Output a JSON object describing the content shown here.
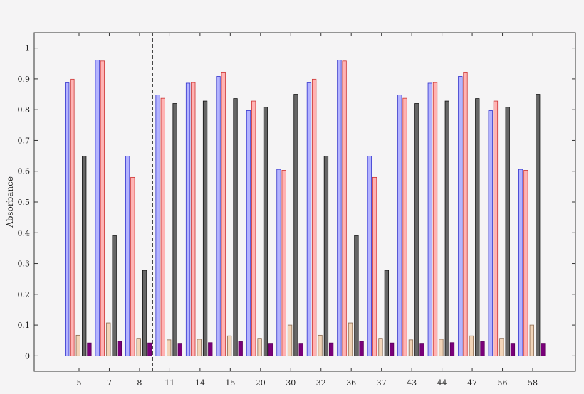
{
  "chart_data": {
    "type": "bar",
    "title": "",
    "xlabel": "",
    "ylabel": "Absorbance",
    "ylim": [
      -0.05,
      1.05
    ],
    "yticks": [
      0,
      0.1,
      0.2,
      0.3,
      0.4,
      0.5,
      0.6,
      0.7,
      0.8,
      0.9,
      1
    ],
    "ytick_labels": [
      "0",
      "0.1",
      "0.2",
      "0.3",
      "0.4",
      "0.5",
      "0.6",
      "0.7",
      "0.8",
      "0.9",
      "1"
    ],
    "categories": [
      "5",
      "7",
      "8",
      "11",
      "14",
      "15",
      "20",
      "30",
      "32",
      "36",
      "37",
      "43",
      "44",
      "47",
      "56",
      "58"
    ],
    "grid": false,
    "legend": "none",
    "divider_after_category": "8",
    "series": [
      {
        "fill": "#b3b3ff",
        "stroke": "#3333cc",
        "values": [
          0.887,
          0.961,
          0.649,
          0.848,
          0.886,
          0.908,
          0.797,
          0.606,
          0.887,
          0.961,
          0.649,
          0.848,
          0.886,
          0.908,
          0.797,
          0.606
        ]
      },
      {
        "fill": "#ffb3b3",
        "stroke": "#cc3333",
        "values": [
          0.899,
          0.958,
          0.58,
          0.837,
          0.888,
          0.922,
          0.828,
          0.603,
          0.899,
          0.958,
          0.58,
          0.837,
          0.888,
          0.922,
          0.828,
          0.603
        ]
      },
      {
        "fill": "#f2d4b8",
        "stroke": "#8a6a50",
        "values": [
          0.067,
          0.107,
          0.057,
          0.052,
          0.054,
          0.065,
          0.057,
          0.1,
          0.067,
          0.107,
          0.057,
          0.052,
          0.054,
          0.065,
          0.057,
          0.1
        ]
      },
      {
        "fill": "#666666",
        "stroke": "#111111",
        "values": [
          0.649,
          0.391,
          0.278,
          0.82,
          0.828,
          0.836,
          0.808,
          0.85,
          0.649,
          0.391,
          0.278,
          0.82,
          0.828,
          0.836,
          0.808,
          0.85
        ]
      },
      {
        "fill": "#7a007a",
        "stroke": "#5a005a",
        "values": [
          0.042,
          0.047,
          0.042,
          0.041,
          0.043,
          0.046,
          0.041,
          0.041,
          0.042,
          0.047,
          0.042,
          0.041,
          0.043,
          0.046,
          0.041,
          0.041
        ]
      }
    ]
  }
}
